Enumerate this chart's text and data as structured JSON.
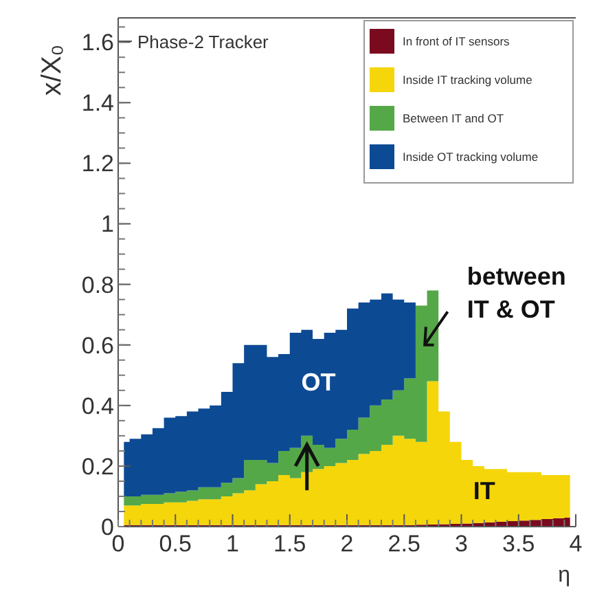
{
  "chart_data": {
    "type": "area",
    "stacked": true,
    "title": "Phase-2 Tracker",
    "xlabel": "η",
    "ylabel": "x/X₀",
    "x": [
      0.05,
      0.15,
      0.25,
      0.35,
      0.45,
      0.55,
      0.65,
      0.75,
      0.85,
      0.95,
      1.05,
      1.15,
      1.25,
      1.35,
      1.45,
      1.55,
      1.65,
      1.75,
      1.85,
      1.95,
      2.05,
      2.15,
      2.25,
      2.35,
      2.45,
      2.55,
      2.65,
      2.75,
      2.85,
      2.95,
      3.05,
      3.15,
      3.25,
      3.35,
      3.45,
      3.55,
      3.65,
      3.75,
      3.85,
      3.95
    ],
    "series": [
      {
        "name": "In front of IT sensors",
        "color": "#7a0a1e",
        "values": [
          0.005,
          0.005,
          0.005,
          0.005,
          0.005,
          0.005,
          0.005,
          0.005,
          0.005,
          0.005,
          0.005,
          0.005,
          0.005,
          0.005,
          0.005,
          0.005,
          0.005,
          0.005,
          0.005,
          0.005,
          0.005,
          0.005,
          0.005,
          0.005,
          0.005,
          0.005,
          0.006,
          0.007,
          0.008,
          0.009,
          0.01,
          0.012,
          0.014,
          0.016,
          0.018,
          0.02,
          0.022,
          0.025,
          0.028,
          0.03
        ]
      },
      {
        "name": "Inside IT tracking volume",
        "color": "#f5d60a",
        "values": [
          0.065,
          0.065,
          0.07,
          0.07,
          0.075,
          0.075,
          0.08,
          0.085,
          0.085,
          0.095,
          0.105,
          0.115,
          0.135,
          0.145,
          0.165,
          0.155,
          0.175,
          0.185,
          0.195,
          0.205,
          0.215,
          0.235,
          0.245,
          0.265,
          0.295,
          0.285,
          0.274,
          0.473,
          0.372,
          0.271,
          0.21,
          0.188,
          0.176,
          0.174,
          0.162,
          0.16,
          0.158,
          0.145,
          0.142,
          0.14
        ]
      },
      {
        "name": "Between IT and OT",
        "color": "#55a847",
        "values": [
          0.03,
          0.03,
          0.03,
          0.03,
          0.03,
          0.035,
          0.035,
          0.04,
          0.04,
          0.045,
          0.05,
          0.1,
          0.08,
          0.06,
          0.08,
          0.1,
          0.12,
          0.08,
          0.06,
          0.08,
          0.1,
          0.12,
          0.15,
          0.15,
          0.15,
          0.2,
          0.45,
          0.3,
          0,
          0,
          0,
          0,
          0,
          0,
          0,
          0,
          0,
          0,
          0,
          0
        ]
      },
      {
        "name": "Inside OT tracking volume",
        "color": "#0d4a94",
        "values": [
          0.18,
          0.19,
          0.2,
          0.22,
          0.25,
          0.25,
          0.26,
          0.26,
          0.27,
          0.3,
          0.38,
          0.38,
          0.38,
          0.35,
          0.32,
          0.38,
          0.35,
          0.35,
          0.38,
          0.36,
          0.4,
          0.38,
          0.35,
          0.35,
          0.3,
          0.25,
          0,
          0,
          0,
          0,
          0,
          0,
          0,
          0,
          0,
          0,
          0,
          0,
          0,
          0
        ]
      }
    ],
    "xlim": [
      0,
      4
    ],
    "xticks": [
      0,
      0.5,
      1,
      1.5,
      2,
      2.5,
      3,
      3.5,
      4
    ],
    "ylim": [
      0,
      1.68
    ],
    "yticks": [
      0,
      0.2,
      0.4,
      0.6,
      0.8,
      {
        "value": 1,
        "label": "1"
      },
      1.2,
      1.4,
      1.6
    ],
    "legend": "top right",
    "grid": false,
    "annotations": [
      "OT",
      "IT",
      "between\nIT & OT"
    ]
  }
}
